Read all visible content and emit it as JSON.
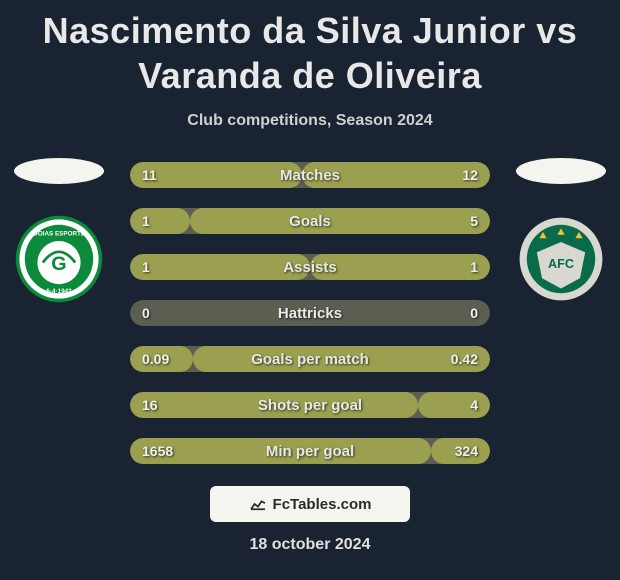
{
  "title": "Nascimento da Silva Junior vs Varanda de Oliveira",
  "subtitle": "Club competitions, Season 2024",
  "footer_brand": "FcTables.com",
  "footer_date": "18 october 2024",
  "colors": {
    "background": "#1a2332",
    "bar_track": "#5a5f52",
    "bar_left_fill": "#9aa050",
    "bar_right_fill": "#9aa050",
    "text": "#e8e8e8",
    "crest_left_primary": "#0a8a3a",
    "crest_left_secondary": "#ffffff",
    "crest_right_primary": "#0a6b4a",
    "crest_right_secondary": "#d8d8d0"
  },
  "stats": [
    {
      "label": "Matches",
      "left_val": "11",
      "right_val": "12",
      "left_pct": 47.8,
      "right_pct": 52.2
    },
    {
      "label": "Goals",
      "left_val": "1",
      "right_val": "5",
      "left_pct": 16.7,
      "right_pct": 83.3
    },
    {
      "label": "Assists",
      "left_val": "1",
      "right_val": "1",
      "left_pct": 50.0,
      "right_pct": 50.0
    },
    {
      "label": "Hattricks",
      "left_val": "0",
      "right_val": "0",
      "left_pct": 0.0,
      "right_pct": 0.0
    },
    {
      "label": "Goals per match",
      "left_val": "0.09",
      "right_val": "0.42",
      "left_pct": 17.6,
      "right_pct": 82.4
    },
    {
      "label": "Shots per goal",
      "left_val": "16",
      "right_val": "4",
      "left_pct": 80.0,
      "right_pct": 20.0
    },
    {
      "label": "Min per goal",
      "left_val": "1658",
      "right_val": "324",
      "left_pct": 83.6,
      "right_pct": 16.4
    }
  ]
}
